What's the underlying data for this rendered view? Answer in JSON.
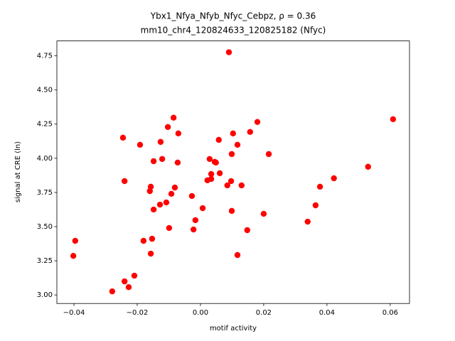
{
  "chart_data": {
    "type": "scatter",
    "title": "Ybx1_Nfya_Nfyb_Nfyc_Cebpz, ρ = 0.36",
    "subtitle": "mm10_chr4_120824633_120825182 (Nfyc)",
    "xlabel": "motif activity",
    "ylabel": "signal at CRE (ln)",
    "color": "#ff0000",
    "xlim": [
      -0.0454,
      0.0661
    ],
    "ylim": [
      2.9375,
      4.859
    ],
    "xticks": [
      {
        "value": -0.04,
        "label": "−0.04"
      },
      {
        "value": -0.02,
        "label": "−0.02"
      },
      {
        "value": 0,
        "label": "0.00"
      },
      {
        "value": 0.02,
        "label": "0.02"
      },
      {
        "value": 0.04,
        "label": "0.04"
      },
      {
        "value": 0.06,
        "label": "0.06"
      }
    ],
    "yticks": [
      {
        "value": 3,
        "label": "3.00"
      },
      {
        "value": 3.25,
        "label": "3.25"
      },
      {
        "value": 3.5,
        "label": "3.50"
      },
      {
        "value": 3.75,
        "label": "3.75"
      },
      {
        "value": 4,
        "label": "4.00"
      },
      {
        "value": 4.25,
        "label": "4.25"
      },
      {
        "value": 4.5,
        "label": "4.50"
      },
      {
        "value": 4.75,
        "label": "4.75"
      }
    ],
    "x": [
      0.009,
      0.0609,
      -0.0085,
      -0.0103,
      -0.007,
      -0.0245,
      -0.0191,
      0.018,
      0.0157,
      0.0103,
      0.0058,
      0.0117,
      -0.0126,
      0.0099,
      0.0216,
      -0.0121,
      -0.0148,
      -0.0072,
      0.0029,
      0.0045,
      0.0049,
      0.053,
      0.0034,
      0.0061,
      0.0034,
      0.0022,
      0.0097,
      -0.024,
      0.0422,
      0.0085,
      0.013,
      0.0378,
      -0.0157,
      -0.0081,
      -0.016,
      -0.0092,
      -0.0027,
      -0.0108,
      -0.0128,
      -0.0148,
      0.0007,
      0.0364,
      0.0099,
      0.02,
      0.0339,
      -0.0016,
      -0.0099,
      -0.0022,
      0.0148,
      -0.0396,
      -0.0153,
      -0.018,
      -0.0157,
      0.0117,
      -0.0402,
      -0.0209,
      -0.024,
      -0.0227,
      -0.0279
    ],
    "values": [
      4.776,
      4.286,
      4.297,
      4.229,
      4.182,
      4.151,
      4.099,
      4.266,
      4.193,
      4.182,
      4.135,
      4.099,
      4.12,
      4.031,
      4.031,
      3.995,
      3.979,
      3.969,
      3.995,
      3.974,
      3.969,
      3.938,
      3.885,
      3.891,
      3.849,
      3.839,
      3.833,
      3.833,
      3.854,
      3.802,
      3.802,
      3.792,
      3.792,
      3.786,
      3.76,
      3.74,
      3.724,
      3.677,
      3.661,
      3.625,
      3.635,
      3.656,
      3.615,
      3.594,
      3.536,
      3.547,
      3.49,
      3.479,
      3.474,
      3.396,
      3.411,
      3.396,
      3.302,
      3.292,
      3.286,
      3.141,
      3.099,
      3.057,
      3.026
    ]
  }
}
